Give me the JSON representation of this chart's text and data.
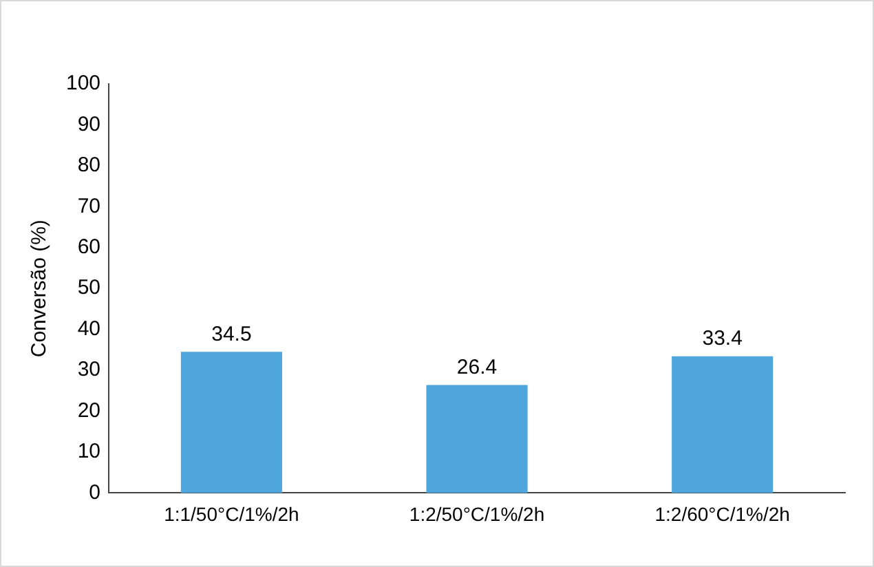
{
  "chart_data": {
    "type": "bar",
    "ylabel": "Conversão (%)",
    "categories": [
      "1:1/50°C/1%/2h",
      "1:2/50°C/1%/2h",
      "1:2/60°C/1%/2h"
    ],
    "values": [
      34.5,
      26.4,
      33.4
    ],
    "color": "#4ea6dc",
    "ylim": [
      0,
      100
    ],
    "yticks": [
      0,
      10,
      20,
      30,
      40,
      50,
      60,
      70,
      80,
      90,
      100
    ],
    "grid": false,
    "legend": false,
    "data_labels": true
  }
}
